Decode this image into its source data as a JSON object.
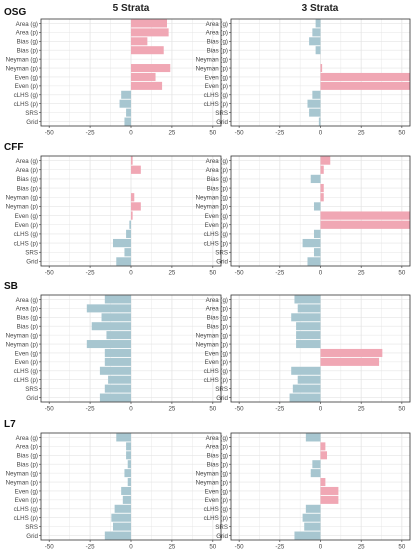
{
  "column_titles": [
    "5 Strata",
    "3 Strata"
  ],
  "panel_titles": [
    "OSG",
    "CFF",
    "SB",
    "L7"
  ],
  "colors": {
    "positive": "#f0a7b4",
    "negative": "#a7c6d0",
    "grid": "#e4e4e4",
    "frame": "#333333",
    "text": "#444444"
  },
  "chart_data": {
    "type": "bar",
    "orientation": "horizontal",
    "categories": [
      "Area (g)",
      "Area (p)",
      "Bias (g)",
      "Bias (p)",
      "Neyman (g)",
      "Neyman (p)",
      "Even (g)",
      "Even (p)",
      "cLHS (g)",
      "cLHS (p)",
      "SRS",
      "Grid"
    ],
    "xlim": [
      -55,
      55
    ],
    "xticks": [
      -50,
      -25,
      0,
      25,
      50
    ],
    "grid": true,
    "panels": [
      {
        "row": "OSG",
        "column": "5 Strata",
        "values": [
          22,
          23,
          10,
          20,
          0,
          24,
          15,
          19,
          -6,
          -7,
          -3,
          -4
        ]
      },
      {
        "row": "OSG",
        "column": "3 Strata",
        "values": [
          -3,
          -5,
          -7,
          -3,
          0,
          1,
          60,
          60,
          -5,
          -8,
          -7,
          -1
        ]
      },
      {
        "row": "CFF",
        "column": "5 Strata",
        "values": [
          1,
          6,
          0,
          0,
          2,
          6,
          1,
          -1,
          -3,
          -11,
          -4,
          -9
        ]
      },
      {
        "row": "CFF",
        "column": "3 Strata",
        "values": [
          6,
          2,
          -6,
          2,
          2,
          -4,
          60,
          60,
          -4,
          -11,
          -4,
          -8
        ]
      },
      {
        "row": "SB",
        "column": "5 Strata",
        "values": [
          -16,
          -27,
          -18,
          -24,
          -15,
          -27,
          -16,
          -16,
          -19,
          -14,
          -16,
          -19
        ]
      },
      {
        "row": "SB",
        "column": "3 Strata",
        "values": [
          -16,
          -14,
          -18,
          -15,
          -15,
          -15,
          38,
          36,
          -18,
          -14,
          -17,
          -19
        ]
      },
      {
        "row": "L7",
        "column": "5 Strata",
        "values": [
          -9,
          -3,
          -3,
          -2,
          -4,
          -2,
          -6,
          -5,
          -10,
          -12,
          -11,
          -16
        ]
      },
      {
        "row": "L7",
        "column": "3 Strata",
        "values": [
          -9,
          3,
          4,
          -5,
          -6,
          3,
          11,
          11,
          -9,
          -11,
          -10,
          -16
        ]
      }
    ]
  }
}
